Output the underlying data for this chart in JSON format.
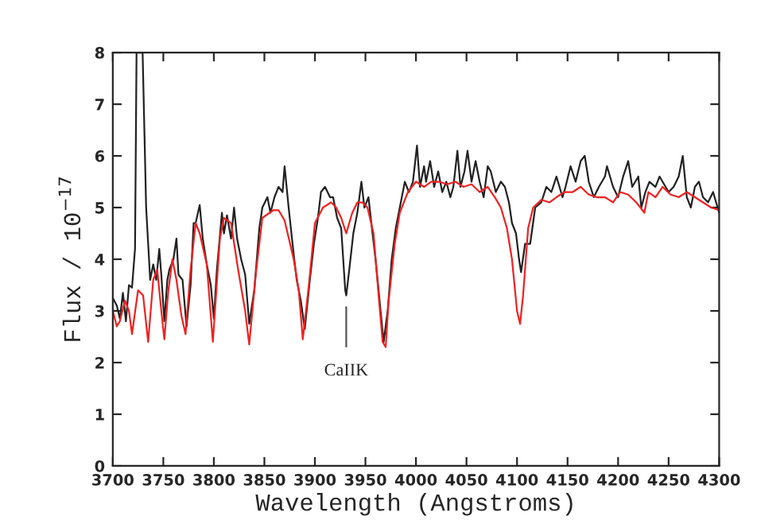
{
  "chart_data": {
    "type": "line",
    "xlabel": "Wavelength (Angstroms)",
    "ylabel": "Flux / 10$^{−17}$",
    "xlim": [
      3700,
      4300
    ],
    "xticks": [
      3700,
      3750,
      3800,
      3850,
      3900,
      3950,
      4000,
      4050,
      4100,
      4150,
      4200,
      4250,
      4300
    ],
    "ylim": [
      0,
      8
    ],
    "yticks": [
      0,
      1,
      2,
      3,
      4,
      5,
      6,
      7,
      8
    ],
    "grid": false,
    "legend": false,
    "marker": "none",
    "line_style": "solid",
    "annotations": [
      {
        "text": "CaIIK",
        "x": 3931,
        "y": 3.2
      }
    ],
    "series": [
      {
        "color": "#222222",
        "x": [
          3700,
          3704,
          3707,
          3710,
          3713,
          3716,
          3719,
          3722,
          3723.5,
          3729.5,
          3733,
          3737,
          3740,
          3743,
          3746,
          3748,
          3751,
          3754,
          3756,
          3760,
          3763,
          3765,
          3769,
          3773,
          3777,
          3780,
          3782,
          3786,
          3789,
          3793,
          3797,
          3800,
          3803,
          3808,
          3810,
          3813,
          3817,
          3820,
          3823,
          3827,
          3831,
          3835,
          3840,
          3845,
          3848,
          3853,
          3856,
          3860,
          3864,
          3868,
          3870,
          3874,
          3879,
          3882,
          3886,
          3890,
          3895,
          3899,
          3903,
          3906,
          3910,
          3915,
          3918,
          3922,
          3926,
          3930,
          3931,
          3934,
          3938,
          3942,
          3946,
          3949,
          3953,
          3957,
          3960,
          3965,
          3968,
          3972,
          3976,
          3980,
          3984,
          3989,
          3993,
          3997,
          4001,
          4004,
          4008,
          4010,
          4014,
          4018,
          4022,
          4026,
          4030,
          4034,
          4037,
          4041,
          4044,
          4048,
          4051,
          4055,
          4059,
          4063,
          4067,
          4071,
          4074,
          4079,
          4084,
          4088,
          4092,
          4095,
          4099,
          4102,
          4104,
          4108,
          4113,
          4118,
          4124,
          4129,
          4134,
          4139,
          4145,
          4148,
          4153,
          4158,
          4163,
          4167,
          4171,
          4176,
          4181,
          4187,
          4189,
          4195,
          4200,
          4205,
          4210,
          4214,
          4220,
          4223,
          4227,
          4231,
          4237,
          4241,
          4244,
          4250,
          4255,
          4260,
          4264,
          4268,
          4272,
          4276,
          4280,
          4284,
          4289,
          4294,
          4300
        ],
        "values": [
          3.25,
          3.1,
          2.85,
          3.35,
          2.8,
          3.5,
          3.45,
          4.2,
          8,
          8,
          5.0,
          3.6,
          3.9,
          3.6,
          4.2,
          3.7,
          2.8,
          3.6,
          3.8,
          4.0,
          4.4,
          3.7,
          3.6,
          2.7,
          3.5,
          4.7,
          4.7,
          5.05,
          4.4,
          3.9,
          3.5,
          2.85,
          3.8,
          4.9,
          4.5,
          4.85,
          4.4,
          5.0,
          4.4,
          4.0,
          3.7,
          2.75,
          3.4,
          4.6,
          5.0,
          5.2,
          4.9,
          5.2,
          5.4,
          5.3,
          5.8,
          5.0,
          4.1,
          3.6,
          3.2,
          2.65,
          3.6,
          4.3,
          4.8,
          5.3,
          5.4,
          5.2,
          5.2,
          4.8,
          4.6,
          3.4,
          3.3,
          3.8,
          4.5,
          4.9,
          5.5,
          5.0,
          5.2,
          4.5,
          4.0,
          3.0,
          2.4,
          3.0,
          4.0,
          4.6,
          5.0,
          5.5,
          5.3,
          5.5,
          6.2,
          5.4,
          5.8,
          5.5,
          5.9,
          5.4,
          5.7,
          5.3,
          5.5,
          5.2,
          5.4,
          6.1,
          5.4,
          5.7,
          6.1,
          5.5,
          5.9,
          5.5,
          5.2,
          5.8,
          5.7,
          5.3,
          5.5,
          5.4,
          5.1,
          4.7,
          4.5,
          4.0,
          3.75,
          4.3,
          4.3,
          5.0,
          5.1,
          5.4,
          5.3,
          5.6,
          5.2,
          5.4,
          5.8,
          5.5,
          5.9,
          6.0,
          5.5,
          5.2,
          5.4,
          5.6,
          5.8,
          5.4,
          5.2,
          5.6,
          5.9,
          5.4,
          5.6,
          5.0,
          5.3,
          5.5,
          5.4,
          5.6,
          5.5,
          5.3,
          5.4,
          5.6,
          6.0,
          5.2,
          5.0,
          5.4,
          5.5,
          5.2,
          5.1,
          5.3,
          4.9
        ]
      },
      {
        "color": "#ee2222",
        "x": [
          3700,
          3704,
          3707,
          3712,
          3716,
          3719,
          3725,
          3730,
          3735,
          3740,
          3744,
          3748,
          3751,
          3755,
          3759,
          3763,
          3768,
          3772,
          3777,
          3782,
          3786,
          3793,
          3799,
          3806,
          3810,
          3817,
          3824,
          3831,
          3835,
          3842,
          3848,
          3859,
          3864,
          3870,
          3879,
          3884,
          3888,
          3894,
          3900,
          3908,
          3916,
          3921,
          3926,
          3931,
          3937,
          3942,
          3947,
          3952,
          3958,
          3963,
          3967,
          3970,
          3973,
          3979,
          3984,
          3992,
          4000,
          4008,
          4015,
          4023,
          4031,
          4039,
          4047,
          4055,
          4063,
          4071,
          4078,
          4084,
          4090,
          4095,
          4100,
          4103,
          4106,
          4111,
          4116,
          4124,
          4132,
          4139,
          4147,
          4155,
          4163,
          4171,
          4179,
          4187,
          4195,
          4202,
          4210,
          4218,
          4226,
          4230,
          4237,
          4244,
          4252,
          4260,
          4268,
          4276,
          4284,
          4292,
          4300
        ],
        "values": [
          3.0,
          2.7,
          2.8,
          3.2,
          3.0,
          2.55,
          3.4,
          3.3,
          2.4,
          3.6,
          3.8,
          3.0,
          2.45,
          3.4,
          4.0,
          3.6,
          2.9,
          2.55,
          3.8,
          4.7,
          4.5,
          3.9,
          2.4,
          4.4,
          4.8,
          4.7,
          3.8,
          3.0,
          2.35,
          3.8,
          4.8,
          4.95,
          4.95,
          4.75,
          4.0,
          3.4,
          2.45,
          3.5,
          4.7,
          5.0,
          5.1,
          5.0,
          4.8,
          4.5,
          4.9,
          5.1,
          5.1,
          5.0,
          4.5,
          3.3,
          2.4,
          2.3,
          3.2,
          4.3,
          4.9,
          5.3,
          5.5,
          5.4,
          5.5,
          5.5,
          5.45,
          5.5,
          5.4,
          5.45,
          5.3,
          5.4,
          5.2,
          5.0,
          4.6,
          4.0,
          3.0,
          2.75,
          3.3,
          4.6,
          5.0,
          5.15,
          5.1,
          5.2,
          5.3,
          5.3,
          5.4,
          5.25,
          5.2,
          5.2,
          5.1,
          5.3,
          5.25,
          5.1,
          4.9,
          5.3,
          5.2,
          5.4,
          5.25,
          5.2,
          5.3,
          5.2,
          5.1,
          5.0,
          4.95
        ]
      }
    ]
  }
}
